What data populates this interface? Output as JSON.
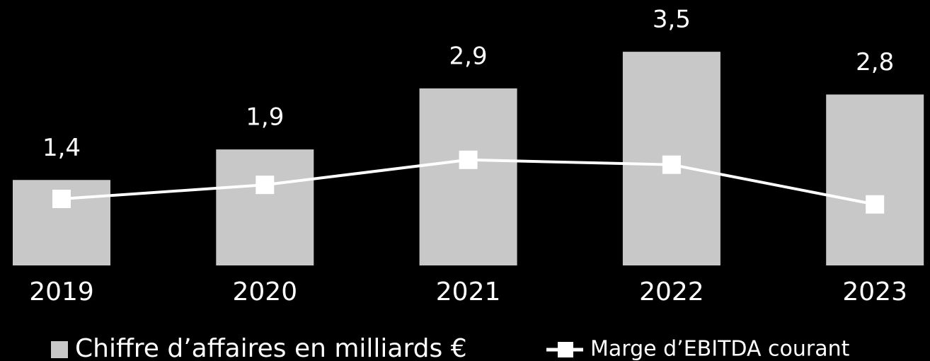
{
  "chart_data": {
    "type": "bar",
    "categories": [
      "2019",
      "2020",
      "2021",
      "2022",
      "2023"
    ],
    "ylim": [
      0,
      4
    ],
    "series": [
      {
        "name": "Chiffre d’affaires en milliards €",
        "type": "bar",
        "color": "#c8c8c8",
        "values": [
          1.4,
          1.9,
          2.9,
          3.5,
          2.8
        ],
        "value_labels": [
          "1,4",
          "1,9",
          "2,9",
          "3,5",
          "2,8"
        ]
      },
      {
        "name": "Marge d’EBITDA courant",
        "type": "line",
        "color": "#ffffff",
        "values": [
          1.09,
          1.32,
          1.73,
          1.65,
          1.0
        ]
      }
    ]
  }
}
